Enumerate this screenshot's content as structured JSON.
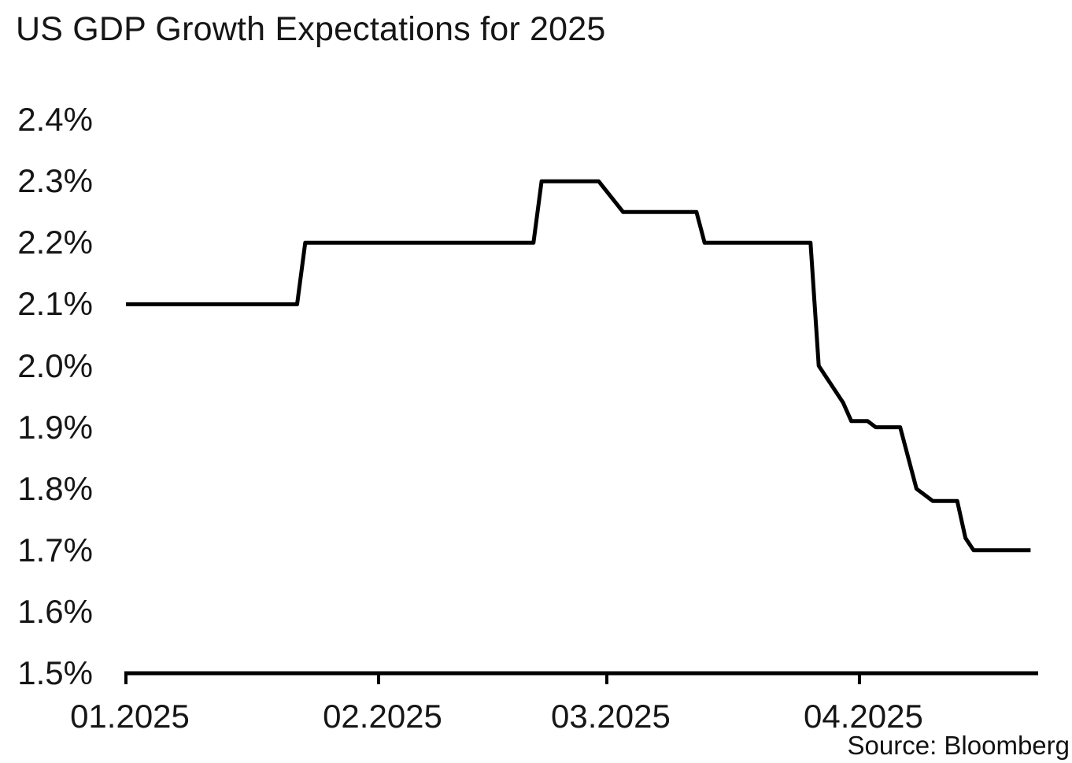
{
  "header": {
    "title": "US GDP Growth Expectations for 2025"
  },
  "footer": {
    "source": "Source: Bloomberg"
  },
  "colors": {
    "line": "#000000",
    "axis": "#000000",
    "text": "#161616",
    "background": "#ffffff"
  },
  "chart_data": {
    "type": "line",
    "title": "US GDP Growth Expectations for 2025",
    "xlabel": "",
    "ylabel": "",
    "grid": false,
    "legend": "none",
    "ylim": [
      1.5,
      2.4
    ],
    "y_tick_labels": [
      "2.4%",
      "2.3%",
      "2.2%",
      "2.1%",
      "2.0%",
      "1.9%",
      "1.8%",
      "1.7%",
      "1.6%",
      "1.5%"
    ],
    "x_tick_labels": [
      "01.2025",
      "02.2025",
      "03.2025",
      "04.2025"
    ],
    "x_range_dates": [
      "01.01.2025",
      "04.22.2025"
    ],
    "unit": "percent",
    "series": [
      {
        "dates": [
          "01.01",
          "01.22",
          "01.23",
          "02.20",
          "02.21",
          "02.28",
          "03.03",
          "03.12",
          "03.13",
          "03.26",
          "03.27",
          "03.30",
          "03.31",
          "04.02",
          "04.03",
          "04.06",
          "04.08",
          "04.09",
          "04.10",
          "04.13",
          "04.14",
          "04.15",
          "04.22"
        ],
        "values": [
          2.1,
          2.1,
          2.2,
          2.2,
          2.3,
          2.3,
          2.25,
          2.25,
          2.2,
          2.2,
          2.0,
          1.94,
          1.91,
          1.91,
          1.9,
          1.9,
          1.8,
          1.79,
          1.78,
          1.78,
          1.72,
          1.7,
          1.7
        ]
      }
    ],
    "source": "Source: Bloomberg"
  }
}
